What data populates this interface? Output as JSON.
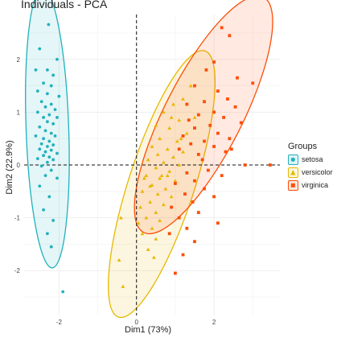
{
  "chart_data": {
    "type": "scatter",
    "title": "Individuals - PCA",
    "xlabel": "Dim1 (73%)",
    "ylabel": "Dim2 (22.9%)",
    "xlim": [
      -2.9,
      3.7
    ],
    "ylim": [
      -2.85,
      2.85
    ],
    "xticks": [
      -2,
      0,
      2
    ],
    "yticks": [
      -2,
      -1,
      0,
      1,
      2
    ],
    "grid": true,
    "legend": {
      "title": "Groups",
      "placement": "right"
    },
    "series": [
      {
        "name": "setosa",
        "color": "#1fb1bd",
        "marker": "circle",
        "ellipse": {
          "center": [
            -2.3,
            0.7
          ],
          "rx": 0.55,
          "ry": 2.65,
          "angle": -2
        },
        "points": [
          [
            -2.27,
            2.66
          ],
          [
            -2.5,
            2.2
          ],
          [
            -2.05,
            2.0
          ],
          [
            -2.3,
            1.8
          ],
          [
            -2.6,
            1.8
          ],
          [
            -2.15,
            1.7
          ],
          [
            -2.4,
            1.55
          ],
          [
            -2.2,
            1.5
          ],
          [
            -2.55,
            1.4
          ],
          [
            -2.3,
            1.35
          ],
          [
            -2.0,
            1.3
          ],
          [
            -2.45,
            1.2
          ],
          [
            -2.2,
            1.15
          ],
          [
            -2.35,
            1.1
          ],
          [
            -2.1,
            1.05
          ],
          [
            -2.55,
            1.0
          ],
          [
            -2.25,
            0.95
          ],
          [
            -2.4,
            0.9
          ],
          [
            -2.05,
            0.9
          ],
          [
            -2.3,
            0.82
          ],
          [
            -2.15,
            0.78
          ],
          [
            -2.5,
            0.72
          ],
          [
            -2.35,
            0.65
          ],
          [
            -2.2,
            0.6
          ],
          [
            -2.6,
            0.55
          ],
          [
            -2.1,
            0.55
          ],
          [
            -2.4,
            0.5
          ],
          [
            -2.25,
            0.45
          ],
          [
            -2.45,
            0.4
          ],
          [
            -2.15,
            0.38
          ],
          [
            -2.3,
            0.35
          ],
          [
            -2.5,
            0.3
          ],
          [
            -2.2,
            0.28
          ],
          [
            -2.35,
            0.25
          ],
          [
            -2.05,
            0.22
          ],
          [
            -2.4,
            0.18
          ],
          [
            -2.25,
            0.15
          ],
          [
            -2.55,
            0.12
          ],
          [
            -2.15,
            0.1
          ],
          [
            -2.3,
            0.05
          ],
          [
            -2.45,
            -0.02
          ],
          [
            -2.2,
            -0.1
          ],
          [
            -2.35,
            -0.2
          ],
          [
            -2.05,
            -0.25
          ],
          [
            -2.5,
            -0.4
          ],
          [
            -2.25,
            -0.6
          ],
          [
            -2.4,
            -0.85
          ],
          [
            -2.15,
            -1.05
          ],
          [
            -2.3,
            -1.3
          ],
          [
            -2.2,
            -1.55
          ],
          [
            -1.9,
            -2.4
          ]
        ]
      },
      {
        "name": "versicolor",
        "color": "#e7b800",
        "marker": "triangle",
        "ellipse": {
          "center": [
            0.65,
            -0.36
          ],
          "rx": 0.85,
          "ry": 2.65,
          "angle": 18
        },
        "points": [
          [
            1.4,
            1.5
          ],
          [
            1.2,
            1.25
          ],
          [
            0.95,
            1.15
          ],
          [
            0.7,
            1.0
          ],
          [
            1.5,
            0.9
          ],
          [
            1.1,
            0.85
          ],
          [
            0.5,
            0.75
          ],
          [
            0.85,
            0.7
          ],
          [
            1.3,
            0.6
          ],
          [
            0.6,
            0.5
          ],
          [
            1.05,
            0.45
          ],
          [
            0.4,
            0.35
          ],
          [
            0.8,
            0.3
          ],
          [
            1.2,
            0.25
          ],
          [
            0.55,
            0.2
          ],
          [
            0.95,
            0.15
          ],
          [
            0.3,
            0.1
          ],
          [
            0.7,
            0.05
          ],
          [
            1.1,
            0.0
          ],
          [
            0.5,
            -0.05
          ],
          [
            0.85,
            -0.12
          ],
          [
            0.25,
            -0.2
          ],
          [
            0.6,
            -0.25
          ],
          [
            1.0,
            -0.3
          ],
          [
            0.4,
            -0.38
          ],
          [
            0.75,
            -0.45
          ],
          [
            0.15,
            -0.5
          ],
          [
            0.55,
            -0.55
          ],
          [
            0.9,
            -0.6
          ],
          [
            0.35,
            -0.7
          ],
          [
            0.7,
            -0.75
          ],
          [
            0.1,
            -0.8
          ],
          [
            0.5,
            -0.9
          ],
          [
            0.25,
            -1.0
          ],
          [
            0.6,
            -1.05
          ],
          [
            0.4,
            -1.2
          ],
          [
            0.15,
            -1.3
          ],
          [
            0.5,
            -1.4
          ],
          [
            0.3,
            -1.6
          ],
          [
            0.45,
            -1.75
          ],
          [
            -0.45,
            -1.8
          ],
          [
            -0.35,
            -2.3
          ],
          [
            0.8,
            -0.2
          ],
          [
            1.15,
            0.5
          ],
          [
            0.9,
            0.9
          ],
          [
            0.2,
            -0.25
          ],
          [
            -0.4,
            -1.0
          ],
          [
            0.05,
            -1.1
          ],
          [
            0.65,
            -0.2
          ],
          [
            0.35,
            -0.4
          ]
        ]
      },
      {
        "name": "virginica",
        "color": "#fc4e07",
        "marker": "square",
        "ellipse": {
          "center": [
            1.73,
            0.95
          ],
          "rx": 1.0,
          "ry": 2.5,
          "angle": 27
        },
        "points": [
          [
            2.2,
            2.6
          ],
          [
            2.4,
            2.45
          ],
          [
            2.0,
            1.95
          ],
          [
            1.8,
            1.8
          ],
          [
            2.6,
            1.65
          ],
          [
            3.0,
            1.55
          ],
          [
            1.5,
            1.5
          ],
          [
            2.1,
            1.4
          ],
          [
            2.35,
            1.25
          ],
          [
            1.75,
            1.2
          ],
          [
            1.3,
            1.15
          ],
          [
            2.55,
            1.1
          ],
          [
            2.0,
            1.0
          ],
          [
            1.6,
            0.95
          ],
          [
            2.25,
            0.9
          ],
          [
            1.35,
            0.85
          ],
          [
            2.7,
            0.8
          ],
          [
            1.9,
            0.75
          ],
          [
            1.5,
            0.7
          ],
          [
            2.1,
            0.6
          ],
          [
            1.2,
            0.55
          ],
          [
            2.4,
            0.5
          ],
          [
            1.75,
            0.45
          ],
          [
            1.4,
            0.4
          ],
          [
            2.0,
            0.35
          ],
          [
            1.1,
            0.3
          ],
          [
            2.3,
            0.25
          ],
          [
            1.6,
            0.2
          ],
          [
            2.8,
            0.0
          ],
          [
            3.45,
            0.0
          ],
          [
            1.85,
            -0.1
          ],
          [
            1.3,
            -0.15
          ],
          [
            2.2,
            -0.2
          ],
          [
            1.5,
            -0.3
          ],
          [
            1.0,
            -0.35
          ],
          [
            1.75,
            -0.45
          ],
          [
            1.25,
            -0.55
          ],
          [
            2.0,
            -0.6
          ],
          [
            1.45,
            -0.7
          ],
          [
            0.9,
            -0.8
          ],
          [
            1.6,
            -0.9
          ],
          [
            1.1,
            -1.0
          ],
          [
            2.1,
            -1.1
          ],
          [
            1.3,
            -1.2
          ],
          [
            0.85,
            -1.3
          ],
          [
            1.5,
            -1.45
          ],
          [
            1.2,
            -1.7
          ],
          [
            1.0,
            -2.05
          ],
          [
            1.7,
            0.1
          ],
          [
            2.45,
            0.3
          ]
        ]
      }
    ]
  }
}
